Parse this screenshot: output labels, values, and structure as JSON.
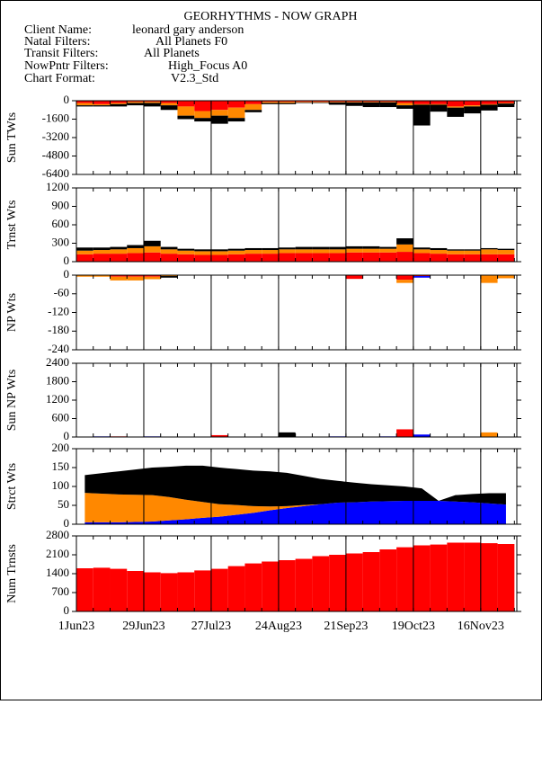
{
  "header": {
    "title": "GEORHYTHMS - NOW GRAPH",
    "fields": [
      {
        "label": "Client Name:",
        "value": "leonard gary anderson"
      },
      {
        "label": "Natal Filters:",
        "value": "All Planets F0"
      },
      {
        "label": "Transit Filters:",
        "value": "All Planets"
      },
      {
        "label": "NowPntr Filters:",
        "value": "High_Focus A0"
      },
      {
        "label": "Chart Format:",
        "value": "V2.3_Std"
      }
    ]
  },
  "chart_data": [
    {
      "type": "bar",
      "ylabel": "Sun TWts",
      "x": [
        "2023-06-01",
        "2023-06-08",
        "2023-06-15",
        "2023-06-22",
        "2023-06-29",
        "2023-07-06",
        "2023-07-13",
        "2023-07-20",
        "2023-07-27",
        "2023-08-03",
        "2023-08-10",
        "2023-08-17",
        "2023-08-24",
        "2023-08-31",
        "2023-09-07",
        "2023-09-14",
        "2023-09-21",
        "2023-09-28",
        "2023-10-05",
        "2023-10-12",
        "2023-10-19",
        "2023-10-26",
        "2023-11-02",
        "2023-11-09",
        "2023-11-16",
        "2023-11-23"
      ],
      "xlim": [
        "2023-06-01",
        "2023-12-01"
      ],
      "ylim": [
        -6400,
        0
      ],
      "yticks": [
        0,
        -1600,
        -3200,
        -4800,
        -6400
      ],
      "series": [
        {
          "color": "#ff0000",
          "values": [
            -200,
            -300,
            -200,
            -100,
            -100,
            -200,
            -500,
            -900,
            -800,
            -600,
            -300,
            -100,
            -100,
            -100,
            -100,
            -100,
            -100,
            -100,
            -100,
            -200,
            -300,
            -300,
            -500,
            -400,
            -300,
            -200
          ]
        },
        {
          "color": "#ff8800",
          "values": [
            -200,
            -100,
            -100,
            -100,
            -100,
            -200,
            -800,
            -600,
            -500,
            -900,
            -500,
            -100,
            -100,
            -50,
            -50,
            -50,
            -50,
            -50,
            -50,
            -200,
            -50,
            -50,
            -100,
            -100,
            -50,
            -50
          ]
        },
        {
          "color": "#000000",
          "values": [
            -100,
            -100,
            -200,
            -200,
            -300,
            -400,
            -300,
            -300,
            -700,
            -300,
            -200,
            -100,
            -100,
            -50,
            -50,
            -200,
            -300,
            -400,
            -400,
            -300,
            -1800,
            -600,
            -800,
            -600,
            -500,
            -300
          ]
        }
      ]
    },
    {
      "type": "bar",
      "ylabel": "Trnst Wts",
      "x": [
        "2023-06-01",
        "2023-06-08",
        "2023-06-15",
        "2023-06-22",
        "2023-06-29",
        "2023-07-06",
        "2023-07-13",
        "2023-07-20",
        "2023-07-27",
        "2023-08-03",
        "2023-08-10",
        "2023-08-17",
        "2023-08-24",
        "2023-08-31",
        "2023-09-07",
        "2023-09-14",
        "2023-09-21",
        "2023-09-28",
        "2023-10-05",
        "2023-10-12",
        "2023-10-19",
        "2023-10-26",
        "2023-11-02",
        "2023-11-09",
        "2023-11-16",
        "2023-11-23"
      ],
      "xlim": [
        "2023-06-01",
        "2023-12-01"
      ],
      "ylim": [
        0,
        1200
      ],
      "yticks": [
        1200,
        900,
        600,
        300,
        0
      ],
      "series": [
        {
          "color": "#ff0000",
          "values": [
            120,
            130,
            130,
            140,
            150,
            130,
            120,
            110,
            110,
            120,
            130,
            130,
            140,
            140,
            140,
            140,
            150,
            150,
            150,
            160,
            140,
            130,
            120,
            120,
            120,
            120
          ]
        },
        {
          "color": "#ff8800",
          "values": [
            60,
            60,
            70,
            80,
            100,
            70,
            60,
            60,
            60,
            60,
            60,
            60,
            60,
            60,
            60,
            60,
            60,
            60,
            60,
            120,
            60,
            60,
            60,
            60,
            80,
            70
          ]
        },
        {
          "color": "#000000",
          "values": [
            50,
            40,
            40,
            50,
            90,
            40,
            30,
            30,
            30,
            30,
            30,
            30,
            30,
            40,
            40,
            40,
            40,
            40,
            30,
            100,
            30,
            30,
            20,
            20,
            20,
            20
          ]
        }
      ]
    },
    {
      "type": "bar",
      "ylabel": "NP Wts",
      "x": [
        "2023-06-01",
        "2023-06-08",
        "2023-06-15",
        "2023-06-22",
        "2023-06-29",
        "2023-07-06",
        "2023-07-13",
        "2023-07-20",
        "2023-07-27",
        "2023-08-03",
        "2023-08-10",
        "2023-08-17",
        "2023-08-24",
        "2023-08-31",
        "2023-09-07",
        "2023-09-14",
        "2023-09-21",
        "2023-09-28",
        "2023-10-05",
        "2023-10-12",
        "2023-10-19",
        "2023-10-26",
        "2023-11-02",
        "2023-11-09",
        "2023-11-16",
        "2023-11-23"
      ],
      "xlim": [
        "2023-06-01",
        "2023-12-01"
      ],
      "ylim": [
        -240,
        0
      ],
      "yticks": [
        0,
        -60,
        -120,
        -180,
        -240
      ],
      "series": [
        {
          "color": "#ff0000",
          "values": [
            0,
            0,
            -5,
            -5,
            -5,
            0,
            0,
            0,
            0,
            0,
            0,
            0,
            0,
            0,
            0,
            0,
            -12,
            0,
            0,
            -15,
            -3,
            0,
            0,
            0,
            0,
            0
          ]
        },
        {
          "color": "#ff8800",
          "values": [
            -5,
            -5,
            -12,
            -12,
            -8,
            -3,
            0,
            0,
            0,
            0,
            0,
            0,
            0,
            0,
            0,
            0,
            0,
            0,
            0,
            -10,
            0,
            0,
            0,
            0,
            -25,
            -10
          ]
        },
        {
          "color": "#000000",
          "values": [
            0,
            0,
            0,
            0,
            0,
            -5,
            0,
            0,
            0,
            0,
            0,
            0,
            0,
            0,
            0,
            0,
            0,
            0,
            0,
            0,
            0,
            0,
            0,
            0,
            0,
            0
          ]
        },
        {
          "color": "#0000ff",
          "values": [
            0,
            0,
            0,
            0,
            0,
            0,
            0,
            0,
            0,
            0,
            0,
            0,
            0,
            0,
            0,
            0,
            0,
            0,
            0,
            0,
            -5,
            0,
            0,
            0,
            0,
            0
          ]
        }
      ]
    },
    {
      "type": "bar",
      "ylabel": "Sun NP Wts",
      "x": [
        "2023-06-01",
        "2023-06-08",
        "2023-06-15",
        "2023-06-22",
        "2023-06-29",
        "2023-07-06",
        "2023-07-13",
        "2023-07-20",
        "2023-07-27",
        "2023-08-03",
        "2023-08-10",
        "2023-08-17",
        "2023-08-24",
        "2023-08-31",
        "2023-09-07",
        "2023-09-14",
        "2023-09-21",
        "2023-09-28",
        "2023-10-05",
        "2023-10-12",
        "2023-10-19",
        "2023-10-26",
        "2023-11-02",
        "2023-11-09",
        "2023-11-16",
        "2023-11-23"
      ],
      "xlim": [
        "2023-06-01",
        "2023-12-01"
      ],
      "ylim": [
        0,
        2400
      ],
      "yticks": [
        2400,
        1800,
        1200,
        600,
        0
      ],
      "series": [
        {
          "color": "#ff0000",
          "values": [
            0,
            0,
            20,
            0,
            0,
            0,
            0,
            0,
            60,
            0,
            0,
            0,
            0,
            0,
            0,
            0,
            0,
            0,
            0,
            250,
            0,
            0,
            0,
            0,
            0,
            0
          ]
        },
        {
          "color": "#000000",
          "values": [
            0,
            0,
            0,
            0,
            0,
            0,
            0,
            0,
            0,
            0,
            0,
            0,
            150,
            0,
            0,
            0,
            0,
            0,
            0,
            0,
            0,
            0,
            0,
            0,
            0,
            0
          ]
        },
        {
          "color": "#0000ff",
          "values": [
            0,
            20,
            0,
            0,
            20,
            0,
            0,
            0,
            0,
            0,
            0,
            0,
            0,
            0,
            0,
            20,
            0,
            0,
            20,
            0,
            80,
            0,
            0,
            0,
            0,
            0
          ]
        },
        {
          "color": "#ff8800",
          "values": [
            0,
            0,
            0,
            0,
            0,
            0,
            0,
            0,
            0,
            0,
            0,
            0,
            0,
            0,
            0,
            0,
            0,
            0,
            0,
            0,
            0,
            0,
            0,
            0,
            150,
            0
          ]
        }
      ]
    },
    {
      "type": "area",
      "ylabel": "Strct Wts",
      "x": [
        "2023-06-01",
        "2023-06-08",
        "2023-06-15",
        "2023-06-22",
        "2023-06-29",
        "2023-07-06",
        "2023-07-13",
        "2023-07-20",
        "2023-07-27",
        "2023-08-03",
        "2023-08-10",
        "2023-08-17",
        "2023-08-24",
        "2023-08-31",
        "2023-09-07",
        "2023-09-14",
        "2023-09-21",
        "2023-09-28",
        "2023-10-05",
        "2023-10-12",
        "2023-10-19",
        "2023-10-26",
        "2023-11-02",
        "2023-11-09",
        "2023-11-16",
        "2023-11-23"
      ],
      "xlim": [
        "2023-06-01",
        "2023-12-01"
      ],
      "ylim": [
        0,
        200
      ],
      "yticks": [
        200,
        150,
        100,
        50,
        0
      ],
      "series": [
        {
          "color": "#0000ff",
          "values": [
            5,
            5,
            5,
            6,
            7,
            10,
            13,
            17,
            20,
            25,
            30,
            37,
            43,
            48,
            53,
            57,
            58,
            60,
            61,
            62,
            62,
            62,
            60,
            58,
            55,
            52
          ]
        },
        {
          "color": "#ff8800",
          "values": [
            78,
            76,
            74,
            72,
            70,
            62,
            52,
            42,
            33,
            26,
            18,
            10,
            5,
            3,
            0,
            0,
            0,
            0,
            0,
            0,
            0,
            0,
            0,
            0,
            0,
            0
          ]
        },
        {
          "color": "#000000",
          "values": [
            47,
            54,
            61,
            67,
            73,
            80,
            90,
            96,
            97,
            95,
            94,
            93,
            88,
            77,
            67,
            58,
            52,
            46,
            42,
            38,
            33,
            0,
            17,
            22,
            27,
            30
          ]
        }
      ]
    },
    {
      "type": "bar",
      "ylabel": "Num Trnsts",
      "x": [
        "2023-06-01",
        "2023-06-08",
        "2023-06-15",
        "2023-06-22",
        "2023-06-29",
        "2023-07-06",
        "2023-07-13",
        "2023-07-20",
        "2023-07-27",
        "2023-08-03",
        "2023-08-10",
        "2023-08-17",
        "2023-08-24",
        "2023-08-31",
        "2023-09-07",
        "2023-09-14",
        "2023-09-21",
        "2023-09-28",
        "2023-10-05",
        "2023-10-12",
        "2023-10-19",
        "2023-10-26",
        "2023-11-02",
        "2023-11-09",
        "2023-11-16",
        "2023-11-23"
      ],
      "xlim": [
        "2023-06-01",
        "2023-12-01"
      ],
      "ylim": [
        0,
        2800
      ],
      "yticks": [
        2800,
        2100,
        1400,
        700,
        0
      ],
      "xticks": [
        {
          "value": "2023-06-01",
          "label": "1Jun23"
        },
        {
          "value": "2023-06-29",
          "label": "29Jun23"
        },
        {
          "value": "2023-07-27",
          "label": "27Jul23"
        },
        {
          "value": "2023-08-24",
          "label": "24Aug23"
        },
        {
          "value": "2023-09-21",
          "label": "21Sep23"
        },
        {
          "value": "2023-10-19",
          "label": "19Oct23"
        },
        {
          "value": "2023-11-16",
          "label": "16Nov23"
        }
      ],
      "series": [
        {
          "color": "#ff0000",
          "values": [
            1600,
            1620,
            1580,
            1500,
            1450,
            1420,
            1450,
            1520,
            1580,
            1680,
            1780,
            1850,
            1900,
            1950,
            2050,
            2100,
            2150,
            2200,
            2300,
            2380,
            2450,
            2480,
            2550,
            2550,
            2530,
            2500
          ]
        }
      ]
    }
  ]
}
